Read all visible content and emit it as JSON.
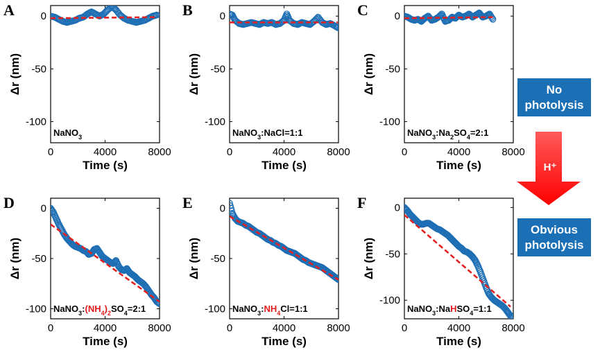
{
  "legend": {
    "no_photolysis": [
      "No",
      "photolysis"
    ],
    "obvious_photolysis": [
      "Obvious",
      "photolysis"
    ],
    "arrow_text": "H⁺",
    "box_color": "#1b6fb5",
    "arrow_color": "#ff1a1a"
  },
  "chart_data": [
    {
      "panel": "A",
      "type": "scatter",
      "annotation": [
        {
          "t": "NaNO"
        },
        {
          "t": "3",
          "sub": true
        }
      ],
      "xlabel": "Time (s)",
      "ylabel": "Δr (nm)",
      "xlim": [
        0,
        8000
      ],
      "ylim": [
        -120,
        10
      ],
      "xticks": [
        0,
        4000,
        8000
      ],
      "yticks": [
        0,
        -50,
        -100
      ],
      "series": [
        {
          "marker": "open-circle",
          "color": "#1f6fb5",
          "x": [
            0,
            300,
            600,
            900,
            1200,
            1500,
            1800,
            2100,
            2400,
            2700,
            3000,
            3300,
            3600,
            3900,
            4200,
            4500,
            4800,
            5100,
            5400,
            5700,
            6000,
            6300,
            6600,
            6900,
            7200,
            7500,
            7800
          ],
          "y": [
            0,
            -1,
            -3,
            -5,
            -6,
            -5,
            -4,
            -2,
            -1,
            2,
            4,
            2,
            0,
            2,
            6,
            9,
            6,
            1,
            -2,
            -4,
            -5,
            -6,
            -5,
            -4,
            -2,
            0,
            1
          ]
        },
        {
          "style": "fit-dashed",
          "color": "#e52020",
          "x": [
            0,
            7800
          ],
          "y": [
            -2,
            -1
          ]
        }
      ]
    },
    {
      "panel": "B",
      "type": "scatter",
      "annotation": [
        {
          "t": "NaNO"
        },
        {
          "t": "3",
          "sub": true
        },
        {
          "t": ":NaCl=1:1"
        }
      ],
      "xlabel": "Time (s)",
      "ylabel": "Δr (nm)",
      "xlim": [
        0,
        8000
      ],
      "ylim": [
        -120,
        10
      ],
      "xticks": [
        0,
        4000,
        8000
      ],
      "yticks": [
        0,
        -50,
        -100
      ],
      "series": [
        {
          "marker": "open-circle",
          "color": "#1f6fb5",
          "x": [
            0,
            200,
            400,
            700,
            1000,
            1300,
            1600,
            1900,
            2200,
            2500,
            2800,
            3100,
            3400,
            3700,
            4000,
            4200,
            4400,
            4700,
            5000,
            5300,
            5600,
            5900,
            6200,
            6500,
            6800,
            7100,
            7400,
            7700,
            7950
          ],
          "y": [
            2,
            1,
            -4,
            -7,
            -8,
            -7,
            -6,
            -7,
            -8,
            -6,
            -7,
            -6,
            -8,
            -7,
            -4,
            2,
            -4,
            -7,
            -8,
            -6,
            -7,
            -8,
            -5,
            -1,
            -6,
            -8,
            -7,
            -9,
            -11
          ]
        },
        {
          "style": "fit-dashed",
          "color": "#e52020",
          "x": [
            0,
            7950
          ],
          "y": [
            -6,
            -6
          ]
        }
      ]
    },
    {
      "panel": "C",
      "type": "scatter",
      "annotation": [
        {
          "t": "NaNO"
        },
        {
          "t": "3",
          "sub": true
        },
        {
          "t": ":Na"
        },
        {
          "t": "2",
          "sub": true
        },
        {
          "t": "SO"
        },
        {
          "t": "4",
          "sub": true
        },
        {
          "t": "=2:1"
        }
      ],
      "xlabel": "Time (s)",
      "ylabel": "Δr (nm)",
      "xlim": [
        0,
        8000
      ],
      "ylim": [
        -120,
        10
      ],
      "xticks": [
        0,
        4000,
        8000
      ],
      "yticks": [
        0,
        -50,
        -100
      ],
      "series": [
        {
          "marker": "open-circle",
          "color": "#1f6fb5",
          "x": [
            0,
            250,
            500,
            750,
            1000,
            1250,
            1500,
            1750,
            2000,
            2250,
            2500,
            2750,
            3000,
            3250,
            3500,
            3750,
            4000,
            4250,
            4500,
            4750,
            5000,
            5250,
            5500,
            5750,
            6000,
            6250,
            6500
          ],
          "y": [
            0,
            -1,
            -3,
            -4,
            -3,
            -5,
            -2,
            0,
            -4,
            -3,
            -1,
            2,
            -5,
            -4,
            -1,
            -2,
            1,
            -1,
            0,
            2,
            -1,
            1,
            3,
            -1,
            0,
            2,
            -3
          ]
        },
        {
          "style": "fit-dashed",
          "color": "#e52020",
          "x": [
            0,
            6500
          ],
          "y": [
            -2,
            -1
          ]
        }
      ]
    },
    {
      "panel": "D",
      "type": "scatter",
      "annotation": [
        {
          "t": "NaNO"
        },
        {
          "t": "3",
          "sub": true
        },
        {
          "t": ":"
        },
        {
          "t": "(NH",
          "red": true
        },
        {
          "t": "4",
          "sub": true,
          "red": true
        },
        {
          "t": ")",
          "red": true
        },
        {
          "t": "2",
          "sub": true,
          "red": true
        },
        {
          "t": "SO"
        },
        {
          "t": "4",
          "sub": true
        },
        {
          "t": "=2:1"
        }
      ],
      "xlabel": "Time (s)",
      "ylabel": "Δr (nm)",
      "xlim": [
        0,
        8000
      ],
      "ylim": [
        -110,
        10
      ],
      "xticks": [
        0,
        4000,
        8000
      ],
      "yticks": [
        0,
        -50,
        -100
      ],
      "series": [
        {
          "marker": "open-circle",
          "color": "#1f6fb5",
          "x": [
            0,
            200,
            400,
            600,
            800,
            1000,
            1200,
            1400,
            1600,
            1800,
            2000,
            2200,
            2400,
            2600,
            2800,
            3000,
            3200,
            3400,
            3600,
            3800,
            4000,
            4200,
            4400,
            4600,
            4800,
            5000,
            5200,
            5400,
            5600,
            5800,
            6000,
            6200,
            6400,
            6600,
            6800,
            7000,
            7200,
            7400,
            7600,
            7800,
            8000
          ],
          "y": [
            0,
            -4,
            -10,
            -16,
            -21,
            -26,
            -30,
            -33,
            -36,
            -38,
            -39,
            -40,
            -42,
            -43,
            -46,
            -45,
            -41,
            -40,
            -44,
            -48,
            -50,
            -52,
            -54,
            -55,
            -52,
            -58,
            -61,
            -62,
            -60,
            -64,
            -66,
            -68,
            -71,
            -73,
            -75,
            -78,
            -82,
            -86,
            -89,
            -93,
            -95
          ]
        },
        {
          "style": "fit-dashed",
          "color": "#e52020",
          "x": [
            0,
            8000
          ],
          "y": [
            -16,
            -93
          ]
        }
      ]
    },
    {
      "panel": "E",
      "type": "scatter",
      "annotation": [
        {
          "t": "NaNO"
        },
        {
          "t": "3",
          "sub": true
        },
        {
          "t": ":"
        },
        {
          "t": "NH",
          "red": true
        },
        {
          "t": "4",
          "sub": true,
          "red": true
        },
        {
          "t": "Cl=1:1"
        }
      ],
      "xlabel": "Time (s)",
      "ylabel": "Δr (nm)",
      "xlim": [
        0,
        8000
      ],
      "ylim": [
        -110,
        10
      ],
      "xticks": [
        0,
        4000,
        8000
      ],
      "yticks": [
        0,
        -50,
        -100
      ],
      "series": [
        {
          "marker": "open-circle",
          "color": "#1f6fb5",
          "x": [
            0,
            200,
            400,
            600,
            800,
            1000,
            1200,
            1400,
            1600,
            1800,
            2000,
            2200,
            2400,
            2600,
            2800,
            3000,
            3200,
            3400,
            3600,
            3800,
            4000,
            4200,
            4400,
            4600,
            4800,
            5000,
            5200,
            5400,
            5600,
            5800,
            6000,
            6200,
            6400,
            6600,
            6800,
            7000,
            7200,
            7400,
            7600,
            7800,
            8000
          ],
          "y": [
            5,
            -5,
            -10,
            -13,
            -14,
            -15,
            -17,
            -18,
            -20,
            -22,
            -24,
            -25,
            -27,
            -29,
            -31,
            -32,
            -34,
            -35,
            -37,
            -38,
            -40,
            -42,
            -43,
            -44,
            -45,
            -47,
            -49,
            -51,
            -52,
            -54,
            -55,
            -56,
            -57,
            -58,
            -59,
            -61,
            -63,
            -65,
            -67,
            -69,
            -71
          ]
        },
        {
          "style": "fit-dashed",
          "color": "#e52020",
          "x": [
            0,
            8000
          ],
          "y": [
            -8,
            -71
          ]
        }
      ]
    },
    {
      "panel": "F",
      "type": "scatter",
      "annotation": [
        {
          "t": "NaNO"
        },
        {
          "t": "3",
          "sub": true
        },
        {
          "t": ":Na"
        },
        {
          "t": "H",
          "red": true
        },
        {
          "t": "SO"
        },
        {
          "t": "4",
          "sub": true
        },
        {
          "t": "=1:1"
        }
      ],
      "xlabel": "Time (s)",
      "ylabel": "Δr (nm)",
      "xlim": [
        0,
        8000
      ],
      "ylim": [
        -120,
        10
      ],
      "xticks": [
        0,
        4000,
        8000
      ],
      "yticks": [
        0,
        -50,
        -100
      ],
      "series": [
        {
          "marker": "open-circle",
          "color": "#1f6fb5",
          "x": [
            0,
            200,
            400,
            600,
            800,
            1000,
            1200,
            1400,
            1600,
            1800,
            2000,
            2200,
            2400,
            2600,
            2800,
            3000,
            3200,
            3400,
            3600,
            3800,
            4000,
            4200,
            4400,
            4600,
            4800,
            5000,
            5200,
            5400,
            5600,
            5800,
            6000,
            6200,
            6400,
            6600,
            6800,
            7000,
            7200,
            7400,
            7600,
            7800,
            8000
          ],
          "y": [
            0,
            -3,
            -7,
            -10,
            -13,
            -16,
            -18,
            -18,
            -17,
            -17,
            -19,
            -21,
            -23,
            -24,
            -26,
            -28,
            -30,
            -33,
            -36,
            -39,
            -42,
            -44,
            -47,
            -48,
            -50,
            -53,
            -57,
            -63,
            -70,
            -78,
            -86,
            -93,
            -97,
            -100,
            -102,
            -104,
            -106,
            -109,
            -113,
            -117,
            -119
          ]
        },
        {
          "style": "fit-dashed",
          "color": "#e52020",
          "x": [
            0,
            7800
          ],
          "y": [
            -8,
            -107
          ]
        }
      ]
    }
  ]
}
